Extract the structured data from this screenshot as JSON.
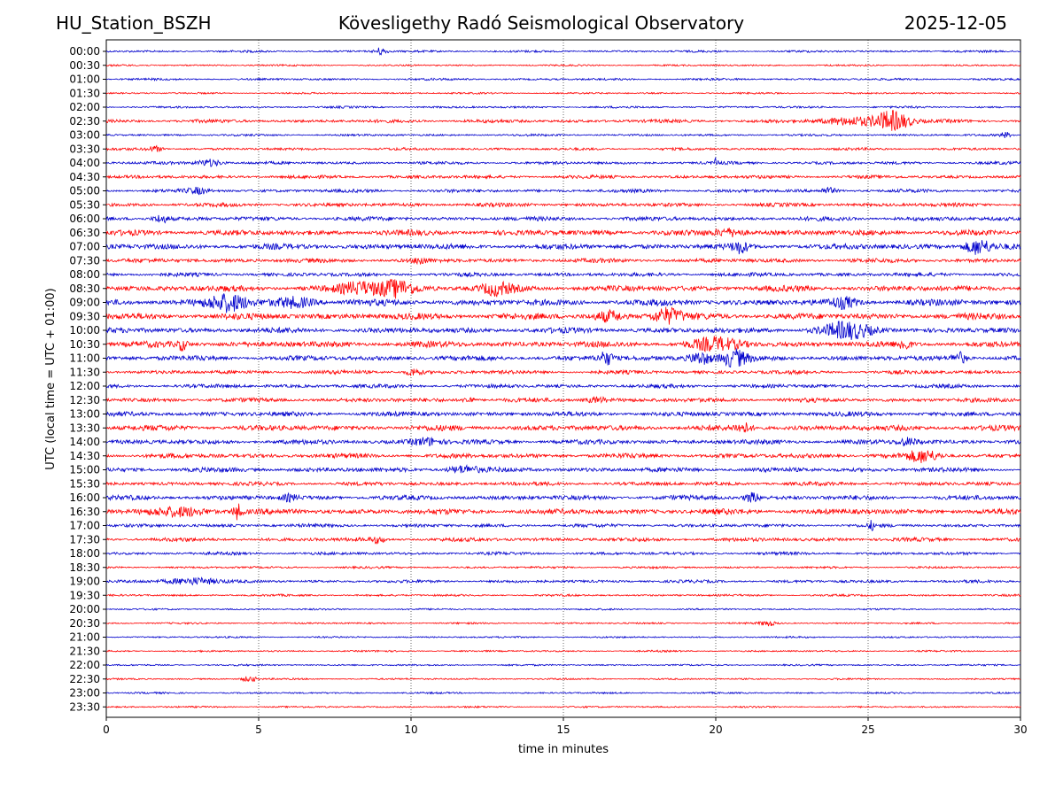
{
  "header": {
    "station": "HU_Station_BSZH",
    "title": "Kövesligethy Radó Seismological Observatory",
    "date": "2025-12-05"
  },
  "chart_data": {
    "type": "line",
    "title": "Kövesligethy Radó Seismological Observatory",
    "xlabel": "time in minutes",
    "ylabel": "UTC (local time = UTC + 01:00)",
    "xlim": [
      0,
      30
    ],
    "xticks": [
      0,
      5,
      10,
      15,
      20,
      25,
      30
    ],
    "grid_x": [
      5,
      10,
      15,
      20,
      25
    ],
    "colors": [
      "#0000cc",
      "#ff0000"
    ],
    "row_labels": [
      "00:00",
      "00:30",
      "01:00",
      "01:30",
      "02:00",
      "02:30",
      "03:00",
      "03:30",
      "04:00",
      "04:30",
      "05:00",
      "05:30",
      "06:00",
      "06:30",
      "07:00",
      "07:30",
      "08:00",
      "08:30",
      "09:00",
      "09:30",
      "10:00",
      "10:30",
      "11:00",
      "11:30",
      "12:00",
      "12:30",
      "13:00",
      "13:30",
      "14:00",
      "14:30",
      "15:00",
      "15:30",
      "16:00",
      "16:30",
      "17:00",
      "17:30",
      "18:00",
      "18:30",
      "19:00",
      "19:30",
      "20:00",
      "20:30",
      "21:00",
      "21:30",
      "22:00",
      "22:30",
      "23:00",
      "23:30"
    ],
    "noise_levels": [
      1.0,
      0.8,
      1.0,
      0.8,
      1.0,
      1.6,
      1.0,
      1.2,
      1.4,
      1.6,
      1.6,
      1.8,
      2.0,
      2.6,
      2.6,
      2.0,
      1.8,
      2.8,
      3.0,
      3.0,
      2.6,
      2.8,
      2.4,
      1.8,
      1.8,
      2.0,
      2.2,
      2.6,
      2.2,
      2.2,
      2.2,
      1.8,
      2.2,
      2.6,
      1.6,
      1.8,
      1.4,
      1.0,
      1.4,
      1.0,
      0.8,
      0.8,
      0.8,
      0.8,
      0.8,
      0.8,
      0.8,
      0.8
    ],
    "events": [
      {
        "row": 0,
        "t": 9.0,
        "amp": 4,
        "dur": 0.25
      },
      {
        "row": 5,
        "t": 25.8,
        "amp": 11,
        "dur": 0.7
      },
      {
        "row": 5,
        "t": 24.5,
        "amp": 4,
        "dur": 1.2
      },
      {
        "row": 6,
        "t": 29.5,
        "amp": 3,
        "dur": 0.2
      },
      {
        "row": 7,
        "t": 1.6,
        "amp": 3,
        "dur": 0.3
      },
      {
        "row": 8,
        "t": 3.4,
        "amp": 4,
        "dur": 0.5
      },
      {
        "row": 8,
        "t": 20.0,
        "amp": 4,
        "dur": 0.1
      },
      {
        "row": 10,
        "t": 3.0,
        "amp": 3,
        "dur": 0.4
      },
      {
        "row": 10,
        "t": 23.7,
        "amp": 3,
        "dur": 0.3
      },
      {
        "row": 12,
        "t": 1.8,
        "amp": 4,
        "dur": 0.3
      },
      {
        "row": 13,
        "t": 20.5,
        "amp": 4,
        "dur": 0.6
      },
      {
        "row": 14,
        "t": 20.8,
        "amp": 6,
        "dur": 0.3
      },
      {
        "row": 14,
        "t": 28.6,
        "amp": 8,
        "dur": 0.5
      },
      {
        "row": 15,
        "t": 10.3,
        "amp": 4,
        "dur": 0.2
      },
      {
        "row": 17,
        "t": 9.5,
        "amp": 9,
        "dur": 0.8
      },
      {
        "row": 17,
        "t": 8.3,
        "amp": 6,
        "dur": 0.8
      },
      {
        "row": 17,
        "t": 12.8,
        "amp": 6,
        "dur": 0.6
      },
      {
        "row": 18,
        "t": 4.0,
        "amp": 9,
        "dur": 0.8
      },
      {
        "row": 18,
        "t": 6.2,
        "amp": 5,
        "dur": 0.8
      },
      {
        "row": 18,
        "t": 24.2,
        "amp": 5,
        "dur": 0.5
      },
      {
        "row": 19,
        "t": 18.4,
        "amp": 8,
        "dur": 0.6
      },
      {
        "row": 19,
        "t": 16.5,
        "amp": 5,
        "dur": 0.5
      },
      {
        "row": 20,
        "t": 24.3,
        "amp": 8,
        "dur": 1.0
      },
      {
        "row": 21,
        "t": 2.5,
        "amp": 6,
        "dur": 0.2
      },
      {
        "row": 21,
        "t": 20.0,
        "amp": 6,
        "dur": 1.0
      },
      {
        "row": 21,
        "t": 26.2,
        "amp": 6,
        "dur": 0.2
      },
      {
        "row": 22,
        "t": 16.4,
        "amp": 7,
        "dur": 0.3
      },
      {
        "row": 22,
        "t": 19.5,
        "amp": 7,
        "dur": 0.5
      },
      {
        "row": 22,
        "t": 20.6,
        "amp": 9,
        "dur": 0.5
      },
      {
        "row": 22,
        "t": 28.0,
        "amp": 6,
        "dur": 0.3
      },
      {
        "row": 23,
        "t": 10.1,
        "amp": 4,
        "dur": 0.3
      },
      {
        "row": 25,
        "t": 11.9,
        "amp": 4,
        "dur": 0.2
      },
      {
        "row": 25,
        "t": 16.1,
        "amp": 3,
        "dur": 0.4
      },
      {
        "row": 27,
        "t": 20.9,
        "amp": 5,
        "dur": 0.3
      },
      {
        "row": 28,
        "t": 10.5,
        "amp": 4,
        "dur": 0.6
      },
      {
        "row": 28,
        "t": 26.3,
        "amp": 4,
        "dur": 0.4
      },
      {
        "row": 29,
        "t": 26.8,
        "amp": 6,
        "dur": 0.6
      },
      {
        "row": 30,
        "t": 11.7,
        "amp": 4,
        "dur": 0.6
      },
      {
        "row": 32,
        "t": 21.2,
        "amp": 5,
        "dur": 0.3
      },
      {
        "row": 32,
        "t": 6.0,
        "amp": 3,
        "dur": 0.3
      },
      {
        "row": 33,
        "t": 4.3,
        "amp": 8,
        "dur": 0.2
      },
      {
        "row": 33,
        "t": 2.5,
        "amp": 4,
        "dur": 1.2
      },
      {
        "row": 34,
        "t": 25.1,
        "amp": 5,
        "dur": 0.1
      },
      {
        "row": 35,
        "t": 8.9,
        "amp": 3,
        "dur": 0.3
      },
      {
        "row": 38,
        "t": 2.8,
        "amp": 4,
        "dur": 1.0
      },
      {
        "row": 41,
        "t": 21.7,
        "amp": 3,
        "dur": 0.3
      },
      {
        "row": 45,
        "t": 4.7,
        "amp": 3,
        "dur": 0.3
      }
    ]
  }
}
